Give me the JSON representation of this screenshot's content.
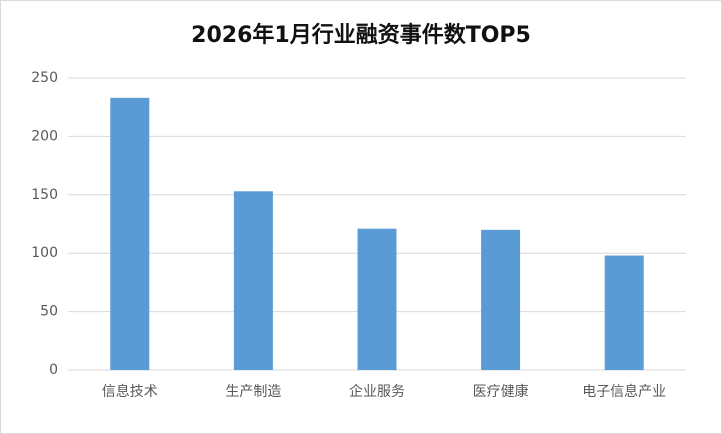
{
  "chart_data": {
    "type": "bar",
    "title": "2026年1月行业融资事件数TOP5",
    "categories": [
      "信息技术",
      "生产制造",
      "企业服务",
      "医疗健康",
      "电子信息产业"
    ],
    "values": [
      233,
      153,
      121,
      120,
      98
    ],
    "color": "#5b9bd5",
    "ylim": [
      0,
      250
    ],
    "yticks": [
      0,
      50,
      100,
      150,
      200,
      250
    ],
    "grid": true
  }
}
